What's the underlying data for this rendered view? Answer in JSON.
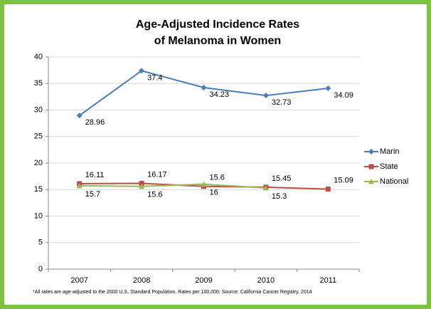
{
  "chart_data": {
    "type": "line",
    "title": [
      "Age-Adjusted Incidence Rates",
      "of Melanoma in Women"
    ],
    "categories": [
      "2007",
      "2008",
      "2009",
      "2010",
      "2011"
    ],
    "series": [
      {
        "name": "Marin",
        "color": "#4a7ebb",
        "marker": "diamond",
        "values": [
          28.96,
          37.4,
          34.23,
          32.73,
          34.09
        ]
      },
      {
        "name": "State",
        "color": "#be4b48",
        "marker": "square",
        "values": [
          16.11,
          16.17,
          15.6,
          15.45,
          15.09
        ]
      },
      {
        "name": "National",
        "color": "#98b954",
        "marker": "triangle",
        "values": [
          15.7,
          15.6,
          16,
          15.3,
          null
        ]
      }
    ],
    "ylim": [
      0,
      40
    ],
    "yticks": [
      0,
      5,
      10,
      15,
      20,
      25,
      30,
      35,
      40
    ],
    "grid": true,
    "legend": "right",
    "footnote": "*All rates are age-adjusted to the 2000 U.S. Standard Population. Rates per 100,000; Source: California Cancer Registry, 2014"
  }
}
